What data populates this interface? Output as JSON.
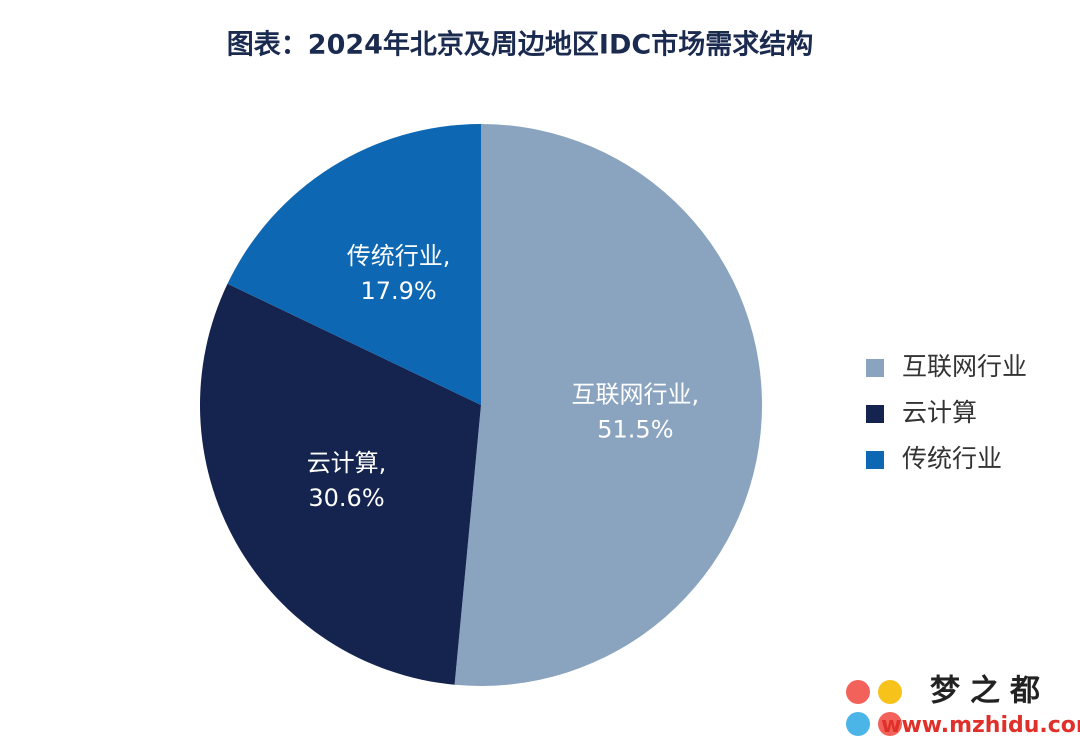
{
  "chart_data": {
    "type": "pie",
    "title": "图表：2024年北京及周边地区IDC市场需求结构",
    "categories": [
      "互联网行业",
      "云计算",
      "传统行业"
    ],
    "values": [
      51.5,
      30.6,
      17.9
    ],
    "value_labels": [
      "51.5%",
      "30.6%",
      "17.9%"
    ],
    "slice_labels": [
      "互联网行业,",
      "云计算,",
      "传统行业,"
    ],
    "colors": [
      "#8aa4bf",
      "#14244f",
      "#0e67b2"
    ],
    "legend": "right"
  },
  "watermark": {
    "brand": "梦之都",
    "url": "www.mzhidu.com"
  }
}
